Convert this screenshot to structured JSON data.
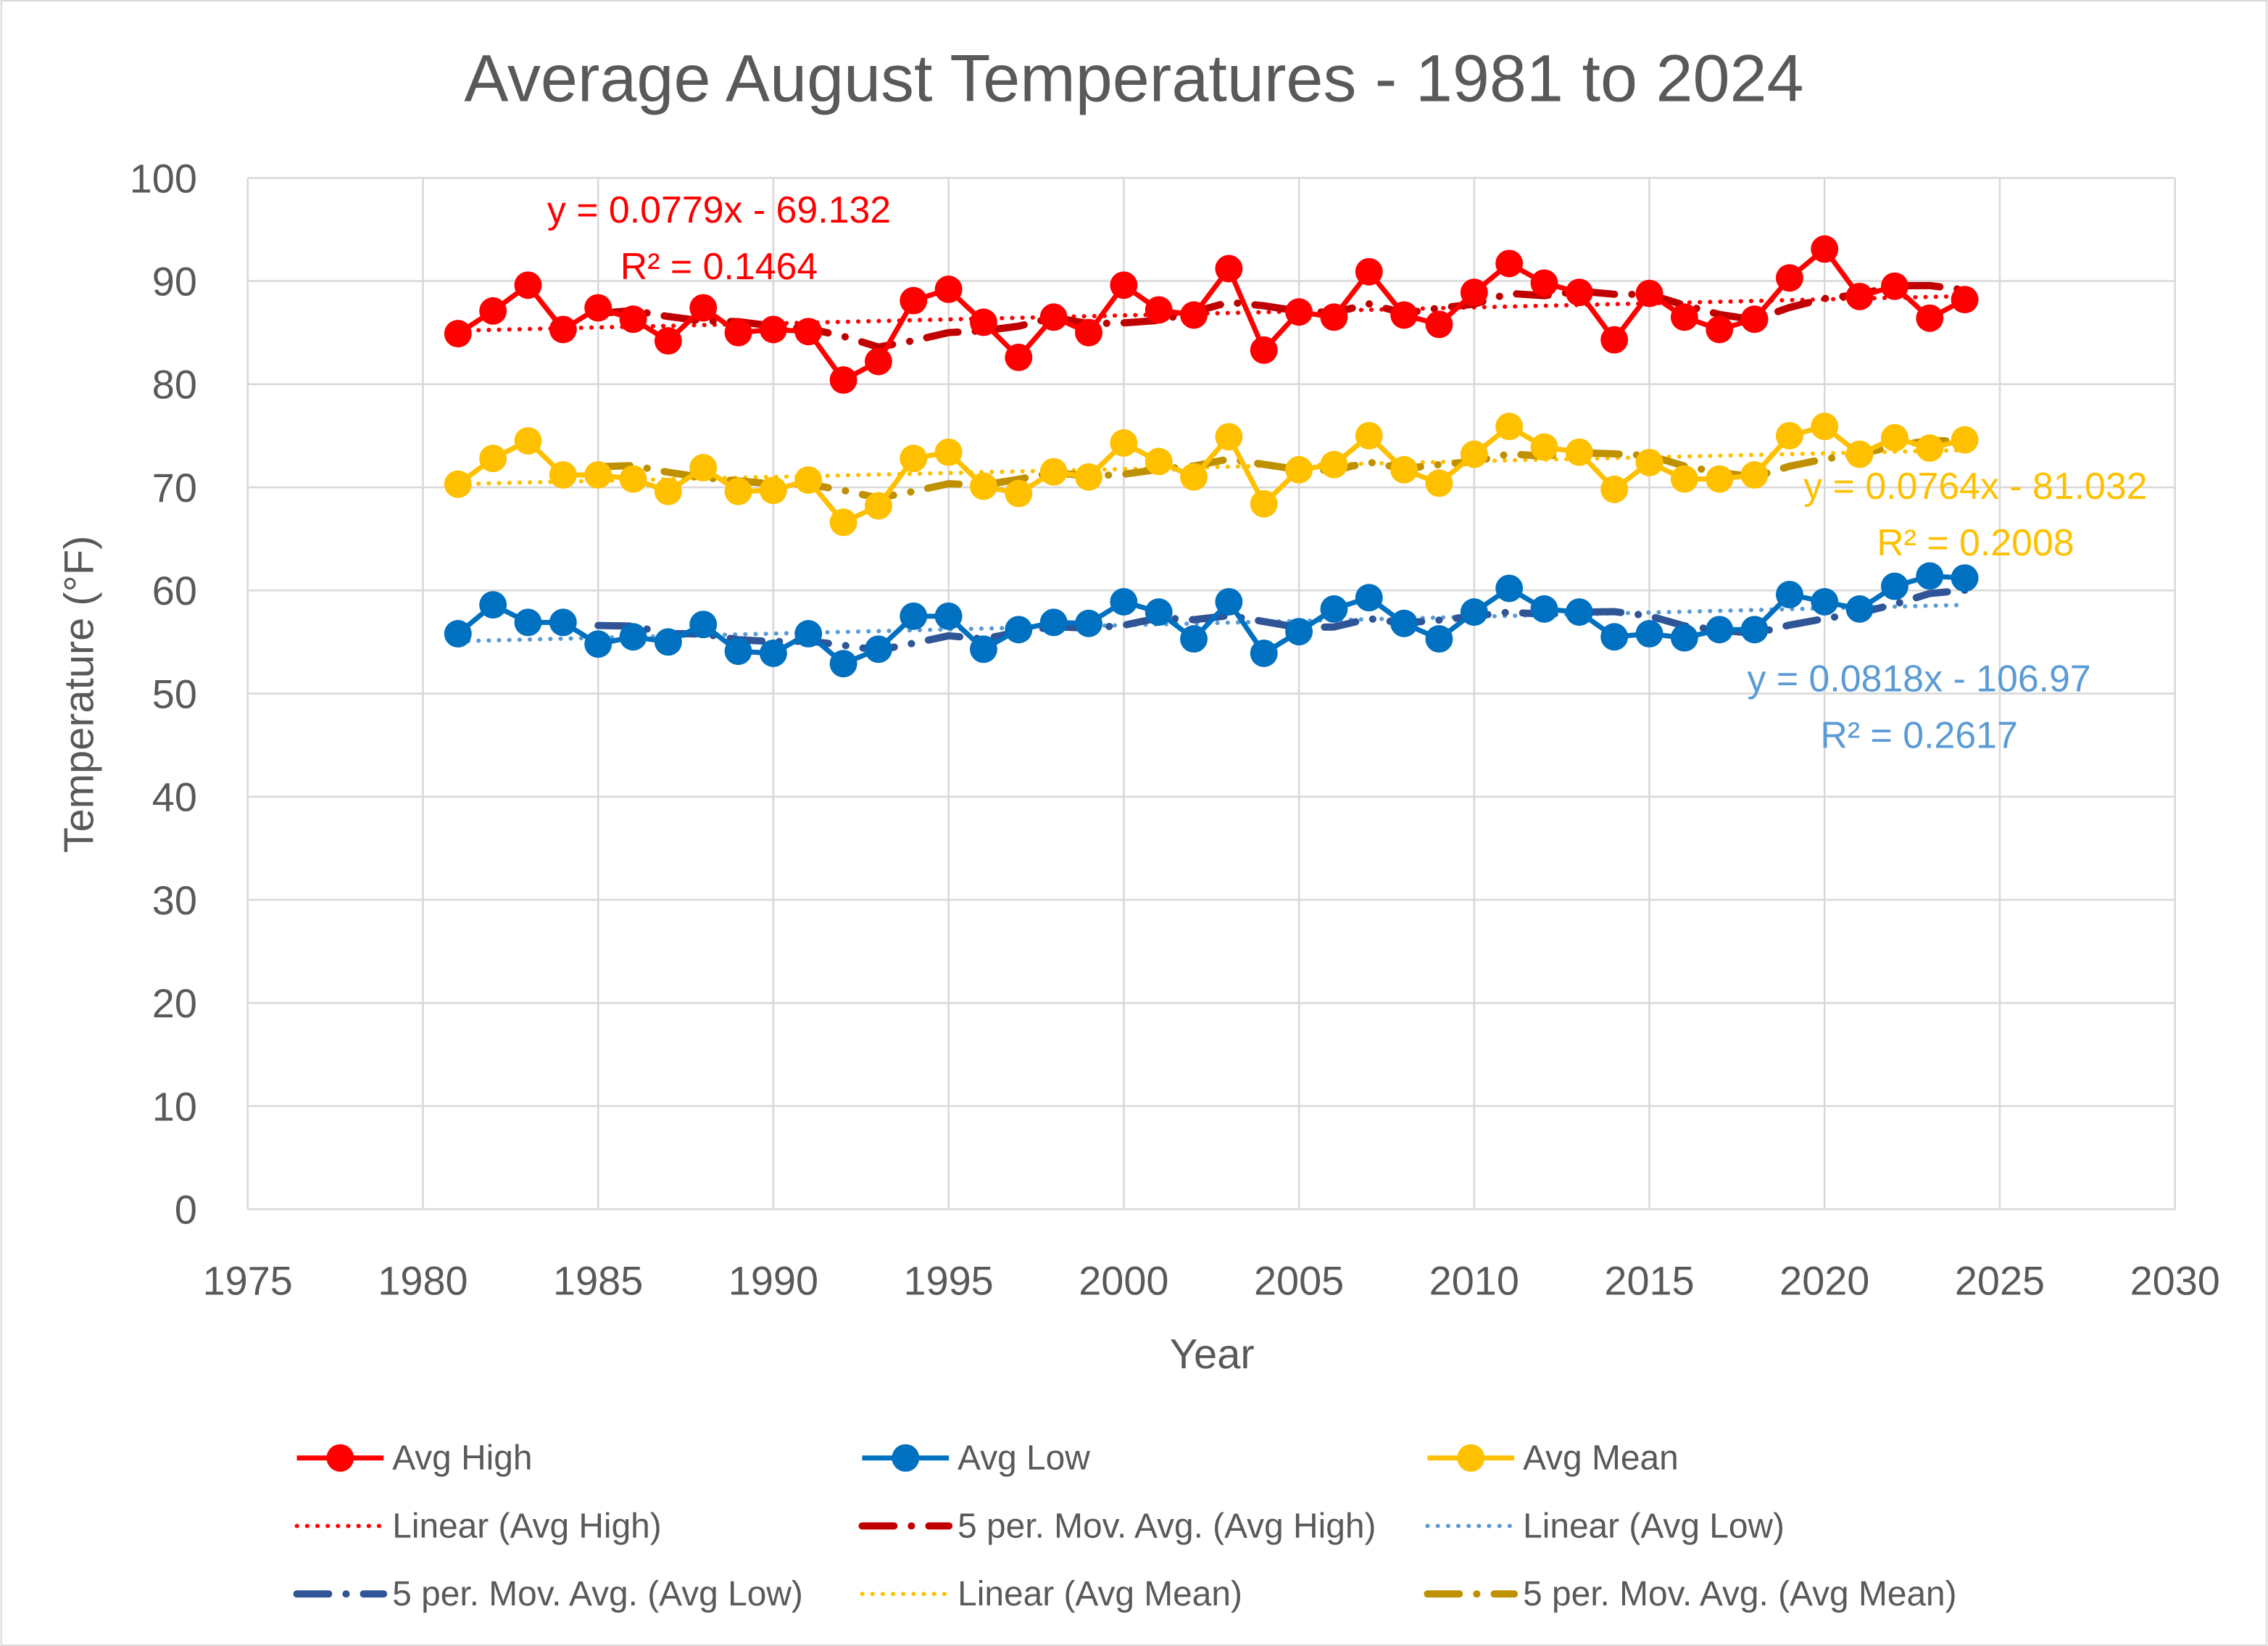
{
  "chart_data": {
    "type": "line",
    "title": "Average August Temperatures - 1981 to 2024",
    "xlabel": "Year",
    "ylabel": "Temperature (°F)",
    "xlim": [
      1975,
      2030
    ],
    "ylim": [
      0,
      100
    ],
    "x_ticks": [
      1975,
      1980,
      1985,
      1990,
      1995,
      2000,
      2005,
      2010,
      2015,
      2020,
      2025,
      2030
    ],
    "y_ticks": [
      0,
      10,
      20,
      30,
      40,
      50,
      60,
      70,
      80,
      90,
      100
    ],
    "grid": true,
    "legend_position": "bottom",
    "x": [
      1981,
      1982,
      1983,
      1984,
      1985,
      1986,
      1987,
      1988,
      1989,
      1990,
      1991,
      1992,
      1993,
      1994,
      1995,
      1996,
      1997,
      1998,
      1999,
      2000,
      2001,
      2002,
      2003,
      2004,
      2005,
      2006,
      2007,
      2008,
      2009,
      2010,
      2011,
      2012,
      2013,
      2014,
      2015,
      2016,
      2017,
      2018,
      2019,
      2020,
      2021,
      2022,
      2023,
      2024
    ],
    "series": [
      {
        "name": "Avg High",
        "color": "#FF0000",
        "values": [
          84.9,
          87.1,
          89.6,
          85.3,
          87.4,
          86.3,
          84.2,
          87.4,
          85.0,
          85.3,
          85.1,
          80.4,
          82.2,
          88.1,
          89.2,
          86.0,
          82.6,
          86.5,
          85.0,
          89.6,
          87.2,
          86.7,
          91.2,
          83.3,
          87.0,
          86.5,
          90.9,
          86.7,
          85.8,
          88.9,
          91.7,
          89.8,
          88.9,
          84.3,
          88.8,
          86.5,
          85.3,
          86.3,
          90.3,
          93.1,
          88.5,
          89.5,
          86.4,
          88.2
        ]
      },
      {
        "name": "Avg Low",
        "color": "#0070C0",
        "values": [
          55.8,
          58.6,
          56.9,
          56.9,
          54.8,
          55.5,
          55.0,
          56.7,
          54.1,
          53.9,
          55.8,
          52.9,
          54.3,
          57.5,
          57.5,
          54.3,
          56.2,
          56.9,
          56.8,
          58.9,
          57.9,
          55.3,
          58.9,
          53.9,
          56.0,
          58.2,
          59.3,
          56.8,
          55.3,
          57.9,
          60.2,
          58.2,
          57.9,
          55.5,
          55.8,
          55.4,
          56.2,
          56.2,
          59.6,
          58.9,
          58.2,
          60.4,
          61.4,
          61.2
        ]
      },
      {
        "name": "Avg Mean",
        "color": "#FFC000",
        "values": [
          70.3,
          72.8,
          74.5,
          71.2,
          71.2,
          70.8,
          69.6,
          71.9,
          69.6,
          69.7,
          70.7,
          66.6,
          68.2,
          72.8,
          73.4,
          70.1,
          69.4,
          71.5,
          71.0,
          74.3,
          72.5,
          71.0,
          74.9,
          68.4,
          71.7,
          72.2,
          75.0,
          71.7,
          70.4,
          73.2,
          75.9,
          73.9,
          73.4,
          69.8,
          72.4,
          70.8,
          70.8,
          71.2,
          75.0,
          75.9,
          73.2,
          74.8,
          73.8,
          74.6
        ]
      }
    ],
    "trendlines": [
      {
        "name": "Linear (Avg High)",
        "series": 0,
        "kind": "linear",
        "slope": 0.0779,
        "intercept": -69.132,
        "color": "#FF0000",
        "equation": "y = 0.0779x - 69.132",
        "r2": "R² = 0.1464"
      },
      {
        "name": "5 per. Mov. Avg. (Avg High)",
        "series": 0,
        "kind": "movavg",
        "period": 5,
        "color": "#C00000"
      },
      {
        "name": "Linear (Avg Low)",
        "series": 1,
        "kind": "linear",
        "slope": 0.0818,
        "intercept": -106.97,
        "color": "#5B9BD5",
        "equation": "y = 0.0818x - 106.97",
        "r2": "R² = 0.2617"
      },
      {
        "name": "5 per. Mov. Avg. (Avg Low)",
        "series": 1,
        "kind": "movavg",
        "period": 5,
        "color": "#2F5597"
      },
      {
        "name": "Linear (Avg Mean)",
        "series": 2,
        "kind": "linear",
        "slope": 0.0764,
        "intercept": -81.032,
        "color": "#FFC000",
        "equation": "y = 0.0764x - 81.032",
        "r2": "R² = 0.2008"
      },
      {
        "name": "5 per. Mov. Avg. (Avg Mean)",
        "series": 2,
        "kind": "movavg",
        "period": 5,
        "color": "#BF9000"
      }
    ],
    "legend": [
      "Avg High",
      "Avg Low",
      "Avg Mean",
      "Linear (Avg High)",
      "5 per. Mov. Avg. (Avg High)",
      "Linear (Avg Low)",
      "5 per. Mov. Avg. (Avg Low)",
      "Linear (Avg Mean)",
      "5 per. Mov. Avg. (Avg Mean)"
    ]
  }
}
